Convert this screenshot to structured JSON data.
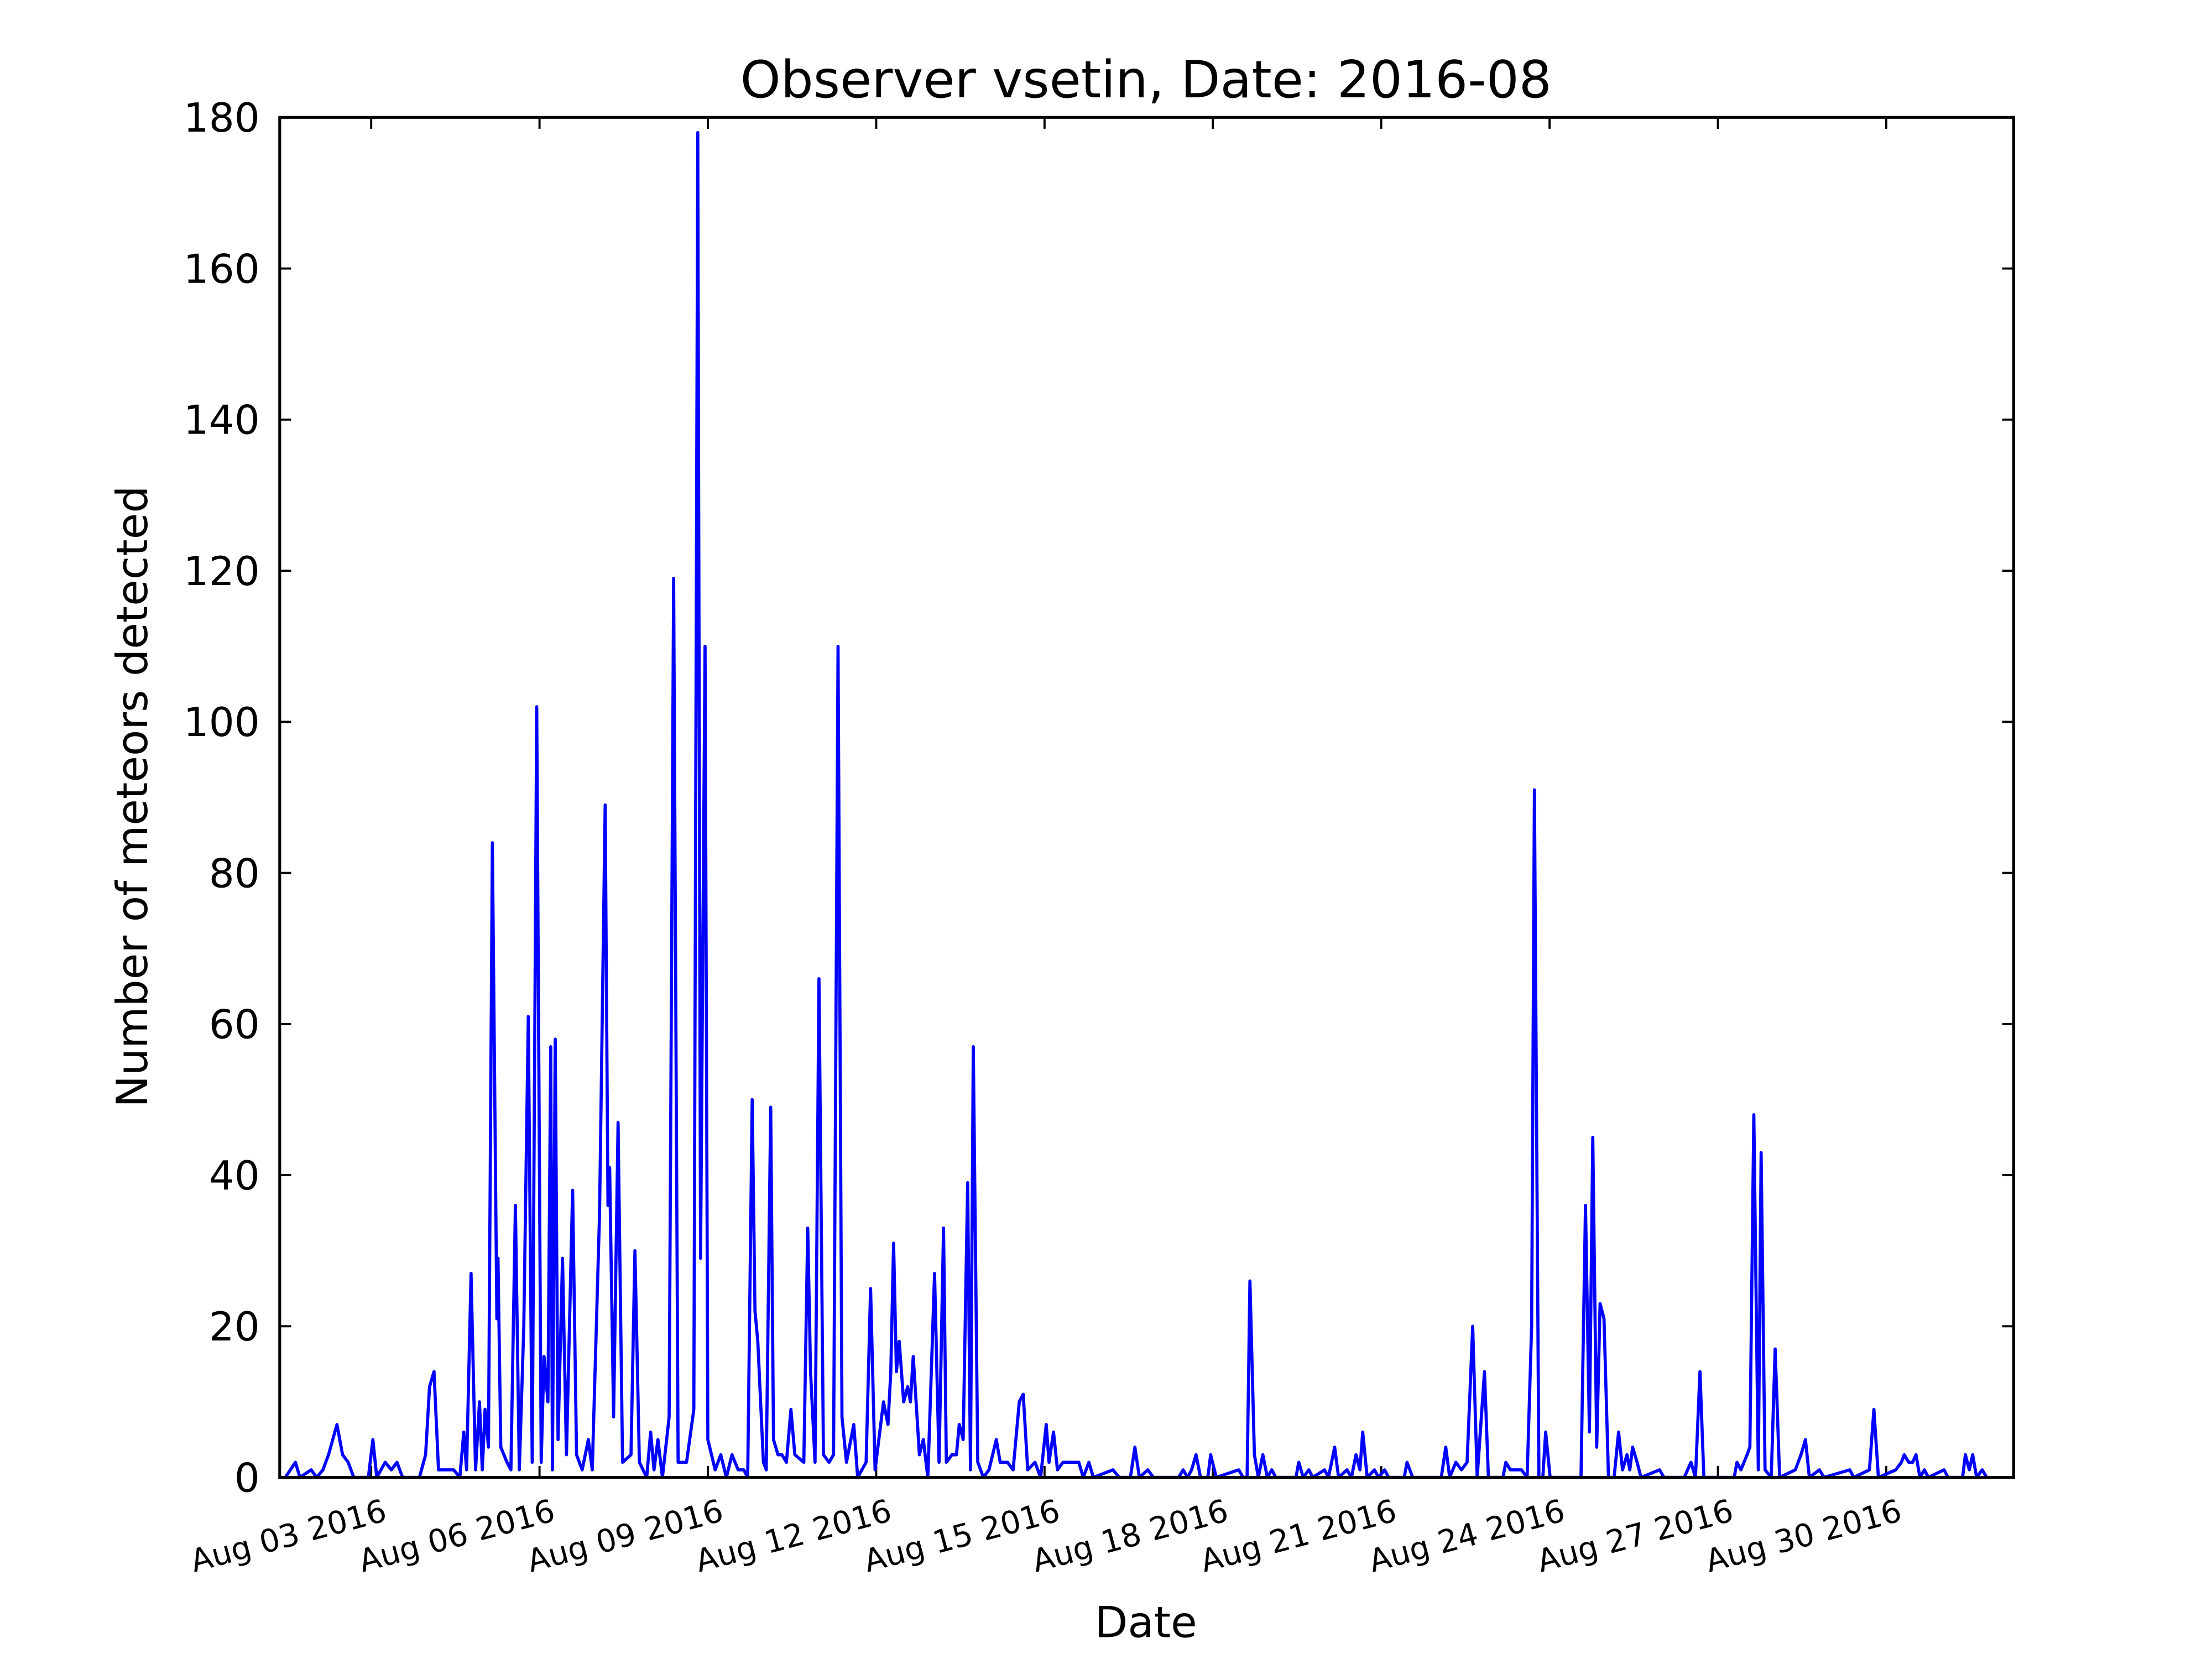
{
  "chart_data": {
    "type": "line",
    "title": "Observer vsetin, Date: 2016-08",
    "x_label": "Date",
    "y_label": "Number of meteors detected",
    "color": "#0000ff",
    "xlim": [
      1.37,
      32.27
    ],
    "ylim": [
      0,
      180
    ],
    "yticks": [
      0,
      20,
      40,
      60,
      80,
      100,
      120,
      140,
      160,
      180
    ],
    "xticks": [
      {
        "value": 3,
        "label": "Aug 03 2016"
      },
      {
        "value": 6,
        "label": "Aug 06 2016"
      },
      {
        "value": 9,
        "label": "Aug 09 2016"
      },
      {
        "value": 12,
        "label": "Aug 12 2016"
      },
      {
        "value": 15,
        "label": "Aug 15 2016"
      },
      {
        "value": 18,
        "label": "Aug 18 2016"
      },
      {
        "value": 21,
        "label": "Aug 21 2016"
      },
      {
        "value": 24,
        "label": "Aug 24 2016"
      },
      {
        "value": 27,
        "label": "Aug 27 2016"
      },
      {
        "value": 30,
        "label": "Aug 30 2016"
      }
    ],
    "x": [
      1.47,
      1.65,
      1.73,
      1.93,
      2.03,
      2.14,
      2.24,
      2.39,
      2.49,
      2.59,
      2.69,
      2.95,
      3.03,
      3.1,
      3.25,
      3.36,
      3.46,
      3.56,
      3.86,
      3.97,
      4.04,
      4.12,
      4.2,
      4.47,
      4.58,
      4.65,
      4.7,
      4.78,
      4.86,
      4.93,
      4.98,
      5.03,
      5.09,
      5.16,
      5.24,
      5.26,
      5.31,
      5.42,
      5.49,
      5.57,
      5.64,
      5.72,
      5.8,
      5.87,
      5.95,
      6.03,
      6.08,
      6.15,
      6.2,
      6.23,
      6.28,
      6.33,
      6.41,
      6.48,
      6.59,
      6.66,
      6.76,
      6.87,
      6.94,
      7.07,
      7.17,
      7.22,
      7.25,
      7.32,
      7.4,
      7.48,
      7.63,
      7.7,
      7.78,
      7.91,
      7.98,
      8.04,
      8.11,
      8.19,
      8.31,
      8.39,
      8.47,
      8.62,
      8.75,
      8.82,
      8.87,
      8.95,
      9.0,
      9.13,
      9.23,
      9.33,
      9.43,
      9.54,
      9.64,
      9.71,
      9.79,
      9.84,
      9.89,
      9.99,
      10.04,
      10.12,
      10.17,
      10.25,
      10.32,
      10.4,
      10.48,
      10.55,
      10.71,
      10.78,
      10.83,
      10.91,
      10.98,
      11.06,
      11.16,
      11.24,
      11.32,
      11.39,
      11.47,
      11.6,
      11.67,
      11.82,
      11.9,
      11.98,
      12.13,
      12.21,
      12.26,
      12.31,
      12.36,
      12.41,
      12.49,
      12.56,
      12.61,
      12.66,
      12.77,
      12.84,
      12.92,
      13.04,
      13.12,
      13.2,
      13.25,
      13.35,
      13.43,
      13.48,
      13.55,
      13.63,
      13.68,
      13.73,
      13.81,
      13.91,
      14.01,
      14.14,
      14.21,
      14.34,
      14.44,
      14.55,
      14.62,
      14.7,
      14.83,
      14.93,
      15.03,
      15.08,
      15.16,
      15.23,
      15.33,
      15.46,
      15.61,
      15.69,
      15.79,
      15.87,
      16.22,
      16.33,
      16.53,
      16.61,
      16.69,
      16.84,
      16.94,
      17.39,
      17.47,
      17.55,
      17.62,
      17.7,
      17.78,
      17.91,
      17.96,
      18.06,
      18.46,
      18.54,
      18.61,
      18.66,
      18.74,
      18.81,
      18.89,
      18.97,
      19.05,
      19.12,
      19.48,
      19.53,
      19.61,
      19.71,
      19.78,
      19.99,
      20.06,
      20.17,
      20.24,
      20.39,
      20.47,
      20.55,
      20.62,
      20.67,
      20.75,
      20.88,
      20.95,
      21.06,
      21.13,
      21.41,
      21.46,
      21.56,
      22.07,
      22.15,
      22.22,
      22.33,
      22.43,
      22.53,
      22.63,
      22.71,
      22.84,
      22.91,
      23.17,
      23.22,
      23.3,
      23.5,
      23.6,
      23.68,
      23.73,
      23.81,
      23.88,
      23.93,
      24.01,
      24.56,
      24.64,
      24.71,
      24.77,
      24.84,
      24.9,
      24.97,
      25.05,
      25.15,
      25.23,
      25.3,
      25.38,
      25.43,
      25.48,
      25.56,
      25.63,
      25.96,
      26.04,
      26.4,
      26.52,
      26.6,
      26.68,
      26.75,
      27.29,
      27.34,
      27.41,
      27.52,
      27.57,
      27.64,
      27.72,
      27.77,
      27.84,
      27.95,
      28.02,
      28.1,
      28.38,
      28.48,
      28.56,
      28.63,
      28.81,
      28.89,
      29.35,
      29.42,
      29.7,
      29.78,
      29.86,
      30.17,
      30.27,
      30.32,
      30.4,
      30.47,
      30.53,
      30.6,
      30.68,
      30.75,
      31.03,
      31.1,
      31.36,
      31.41,
      31.48,
      31.54,
      31.61,
      31.71,
      31.79
    ],
    "values": [
      0,
      2,
      0,
      1,
      0,
      1,
      3,
      7,
      3,
      2,
      0,
      0,
      5,
      0,
      2,
      1,
      2,
      0,
      0,
      3,
      12,
      14,
      1,
      1,
      0,
      6,
      1,
      27,
      1,
      10,
      1,
      9,
      4,
      84,
      21,
      29,
      4,
      2,
      1,
      36,
      1,
      20,
      61,
      2,
      102,
      2,
      16,
      10,
      57,
      1,
      58,
      5,
      29,
      3,
      38,
      3,
      1,
      5,
      1,
      35,
      89,
      36,
      41,
      8,
      47,
      2,
      3,
      30,
      2,
      0,
      6,
      1,
      5,
      0,
      8,
      119,
      2,
      2,
      9,
      178,
      29,
      110,
      5,
      1,
      3,
      0,
      3,
      1,
      1,
      0,
      50,
      22,
      18,
      2,
      1,
      49,
      5,
      3,
      3,
      2,
      9,
      3,
      2,
      33,
      14,
      2,
      66,
      3,
      2,
      3,
      110,
      8,
      2,
      7,
      0,
      2,
      25,
      1,
      10,
      7,
      14,
      31,
      14,
      18,
      10,
      12,
      10,
      16,
      3,
      5,
      0,
      27,
      2,
      33,
      2,
      3,
      3,
      7,
      5,
      39,
      1,
      57,
      2,
      0,
      1,
      5,
      2,
      2,
      1,
      10,
      11,
      1,
      2,
      0,
      7,
      2,
      6,
      1,
      2,
      2,
      2,
      0,
      2,
      0,
      1,
      0,
      0,
      4,
      0,
      1,
      0,
      0,
      1,
      0,
      1,
      3,
      0,
      0,
      3,
      0,
      1,
      0,
      0,
      26,
      3,
      0,
      3,
      0,
      1,
      0,
      0,
      2,
      0,
      1,
      0,
      1,
      0,
      4,
      0,
      1,
      0,
      3,
      1,
      6,
      0,
      1,
      0,
      1,
      0,
      0,
      2,
      0,
      0,
      4,
      0,
      2,
      1,
      2,
      20,
      0,
      14,
      0,
      0,
      2,
      1,
      1,
      0,
      20,
      91,
      0,
      0,
      6,
      0,
      0,
      36,
      6,
      45,
      4,
      23,
      21,
      0,
      0,
      6,
      1,
      3,
      1,
      4,
      2,
      0,
      1,
      0,
      0,
      2,
      0,
      14,
      0,
      0,
      2,
      1,
      3,
      4,
      48,
      1,
      43,
      1,
      0,
      17,
      0,
      1,
      3,
      5,
      0,
      1,
      0,
      1,
      0,
      1,
      9,
      0,
      1,
      2,
      3,
      2,
      2,
      3,
      0,
      1,
      0,
      1,
      0,
      0,
      3,
      1,
      3,
      0,
      1,
      0
    ]
  }
}
